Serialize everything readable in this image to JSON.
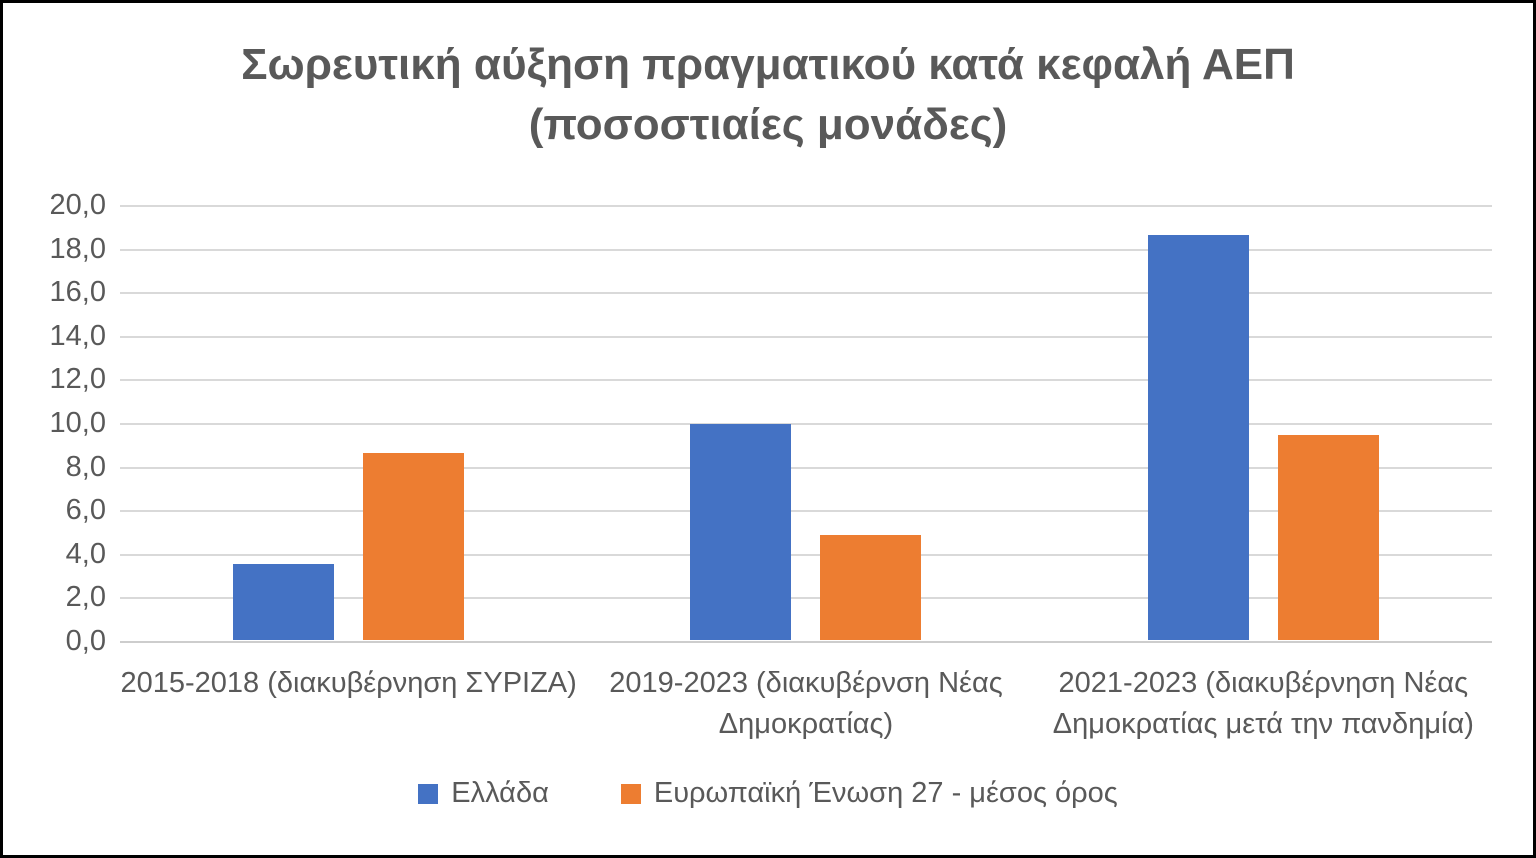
{
  "chart_data": {
    "type": "bar",
    "title": "Σωρευτική αύξηση πραγματικού κατά κεφαλή ΑΕΠ (ποσοστιαίες μονάδες)",
    "title_lines": [
      "Σωρευτική αύξηση πραγματικού κατά κεφαλή ΑΕΠ",
      "(ποσοστιαίες μονάδες)"
    ],
    "categories": [
      "2015-2018 (διακυβέρνηση ΣΥΡΙΖΑ)",
      "2019-2023 (διακυβέρνση Νέας Δημοκρατίας)",
      "2021-2023 (διακυβέρνηση Νέας Δημοκρατίας μετά την πανδημία)"
    ],
    "series": [
      {
        "name": "Ελλάδα",
        "color": "#4472C4",
        "values": [
          3.5,
          9.9,
          18.6
        ]
      },
      {
        "name": "Ευρωπαϊκή Ένωση 27 - μέσος όρος",
        "color": "#ED7D31",
        "values": [
          8.6,
          4.8,
          9.4
        ]
      }
    ],
    "xlabel": "",
    "ylabel": "",
    "ylim": [
      0,
      20
    ],
    "ytick_step": 2,
    "ytick_labels": [
      "0,0",
      "2,0",
      "4,0",
      "6,0",
      "8,0",
      "10,0",
      "12,0",
      "14,0",
      "16,0",
      "18,0",
      "20,0"
    ],
    "grid": true,
    "legend_position": "bottom",
    "colors": {
      "title_text": "#595959",
      "axis_text": "#595959",
      "gridline": "#d9d9d9",
      "background": "#ffffff",
      "border": "#000000"
    }
  }
}
